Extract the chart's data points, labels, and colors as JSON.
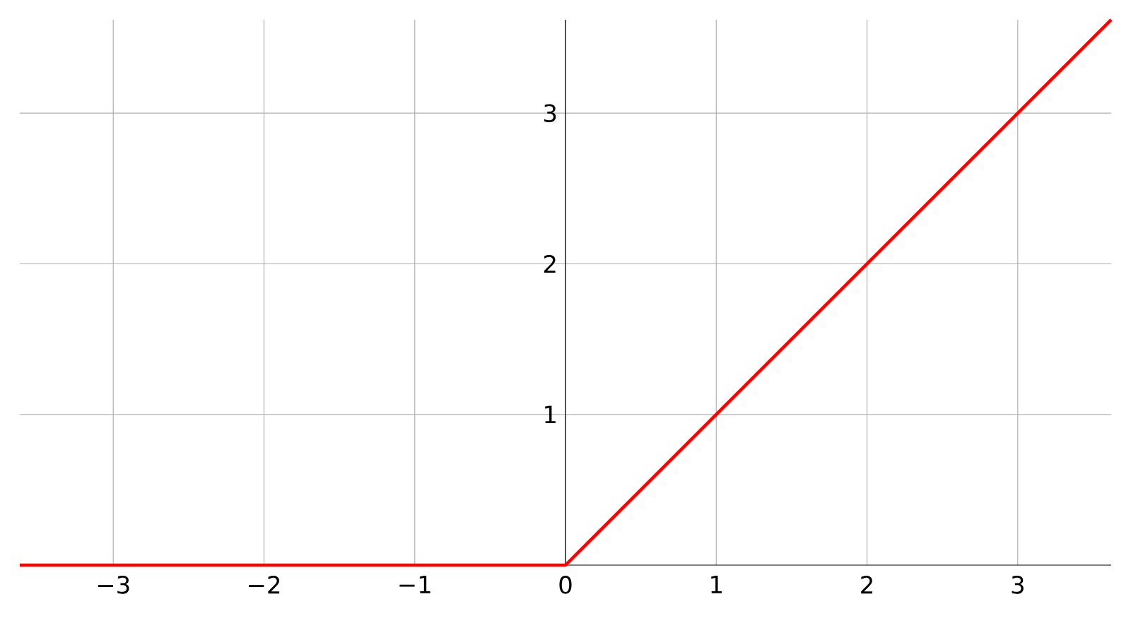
{
  "chart_data": {
    "type": "line",
    "x": [
      -3.62,
      0,
      3.62
    ],
    "series": [
      {
        "color": "#ff0000",
        "values": [
          0,
          0,
          3.62
        ]
      }
    ],
    "xlim": [
      -3.62,
      3.62
    ],
    "ylim": [
      0,
      3.62
    ],
    "xticks": [
      {
        "value": -3,
        "label": "−3"
      },
      {
        "value": -2,
        "label": "−2"
      },
      {
        "value": -1,
        "label": "−1"
      },
      0,
      1,
      2,
      3
    ],
    "yticks": [
      1,
      2,
      3
    ],
    "grid": true,
    "marker": "none",
    "line_style": "solid"
  }
}
